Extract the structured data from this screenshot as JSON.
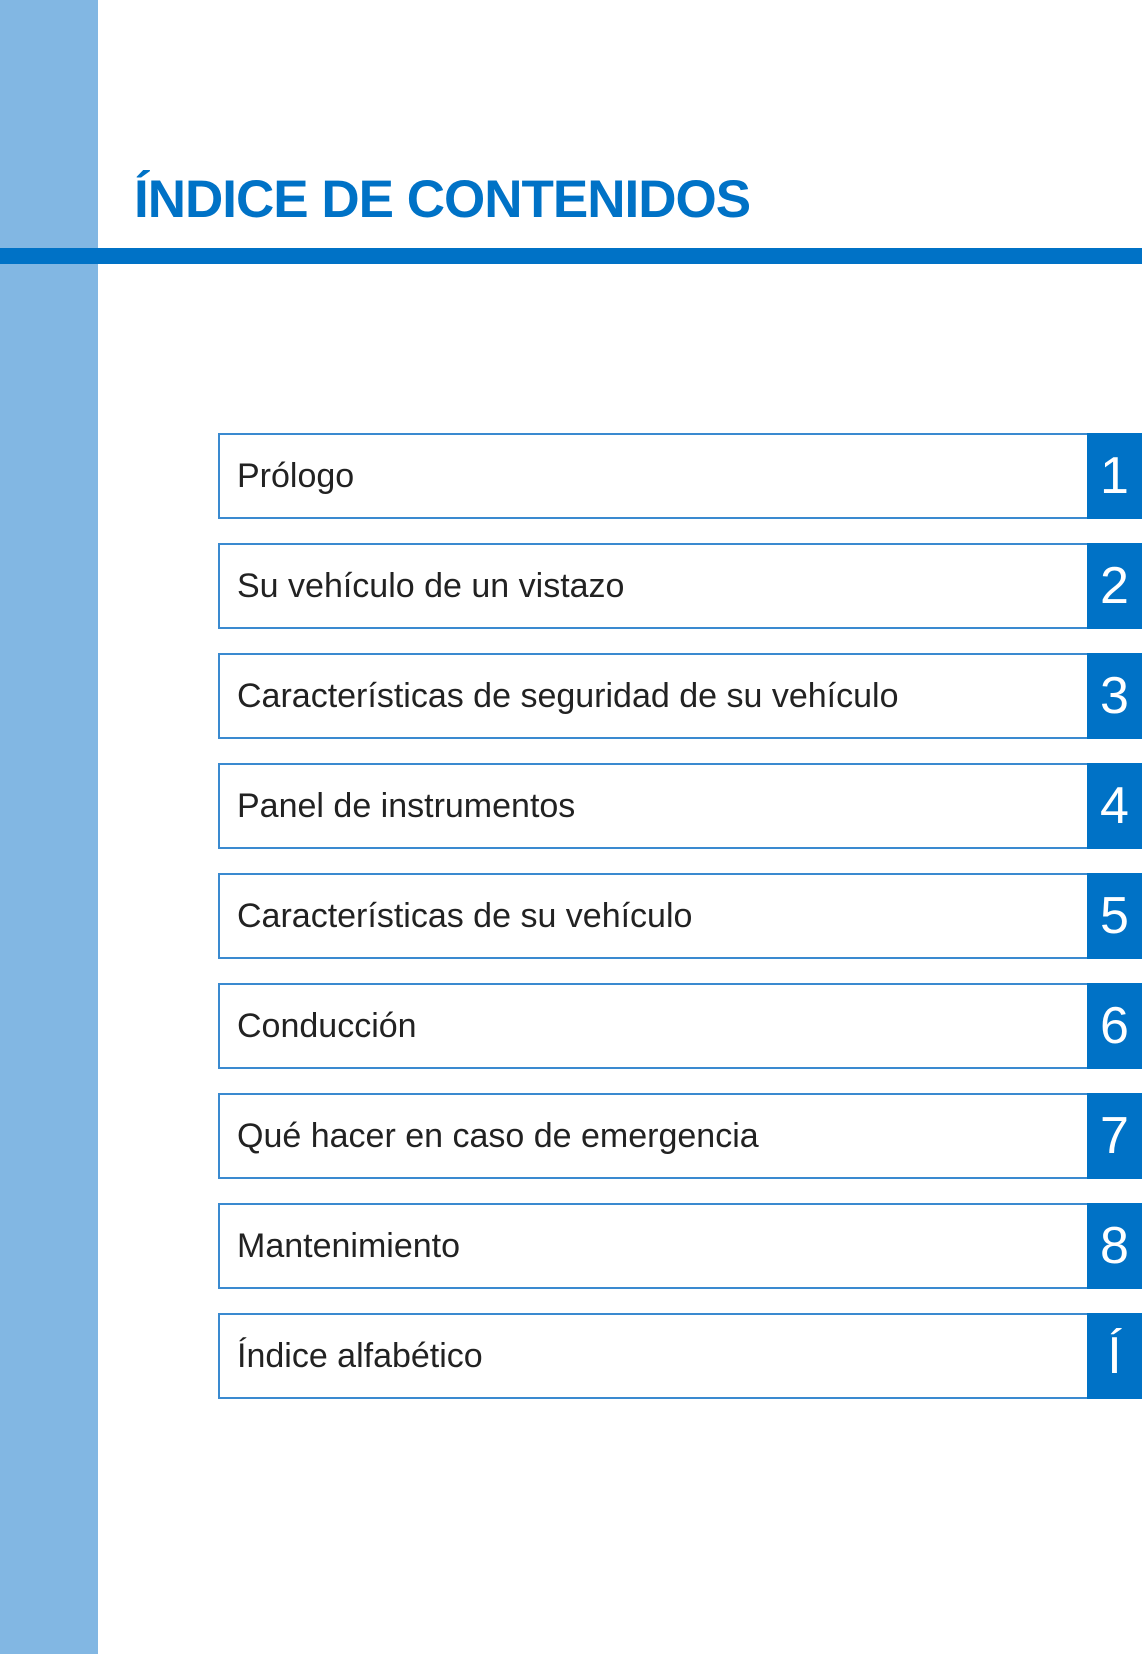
{
  "title": "ÍNDICE DE CONTENIDOS",
  "colors": {
    "accent": "#0072c6",
    "sidebar": "#82b7e3"
  },
  "items": [
    {
      "label": "Prólogo",
      "number": "1"
    },
    {
      "label": "Su vehículo de un vistazo",
      "number": "2"
    },
    {
      "label": "Características de seguridad de su vehículo",
      "number": "3"
    },
    {
      "label": "Panel de instrumentos",
      "number": "4"
    },
    {
      "label": "Características de su vehículo",
      "number": "5"
    },
    {
      "label": "Conducción",
      "number": "6"
    },
    {
      "label": "Qué hacer en caso de emergencia",
      "number": "7"
    },
    {
      "label": "Mantenimiento",
      "number": "8"
    },
    {
      "label": "Índice alfabético",
      "number": "Í"
    }
  ]
}
